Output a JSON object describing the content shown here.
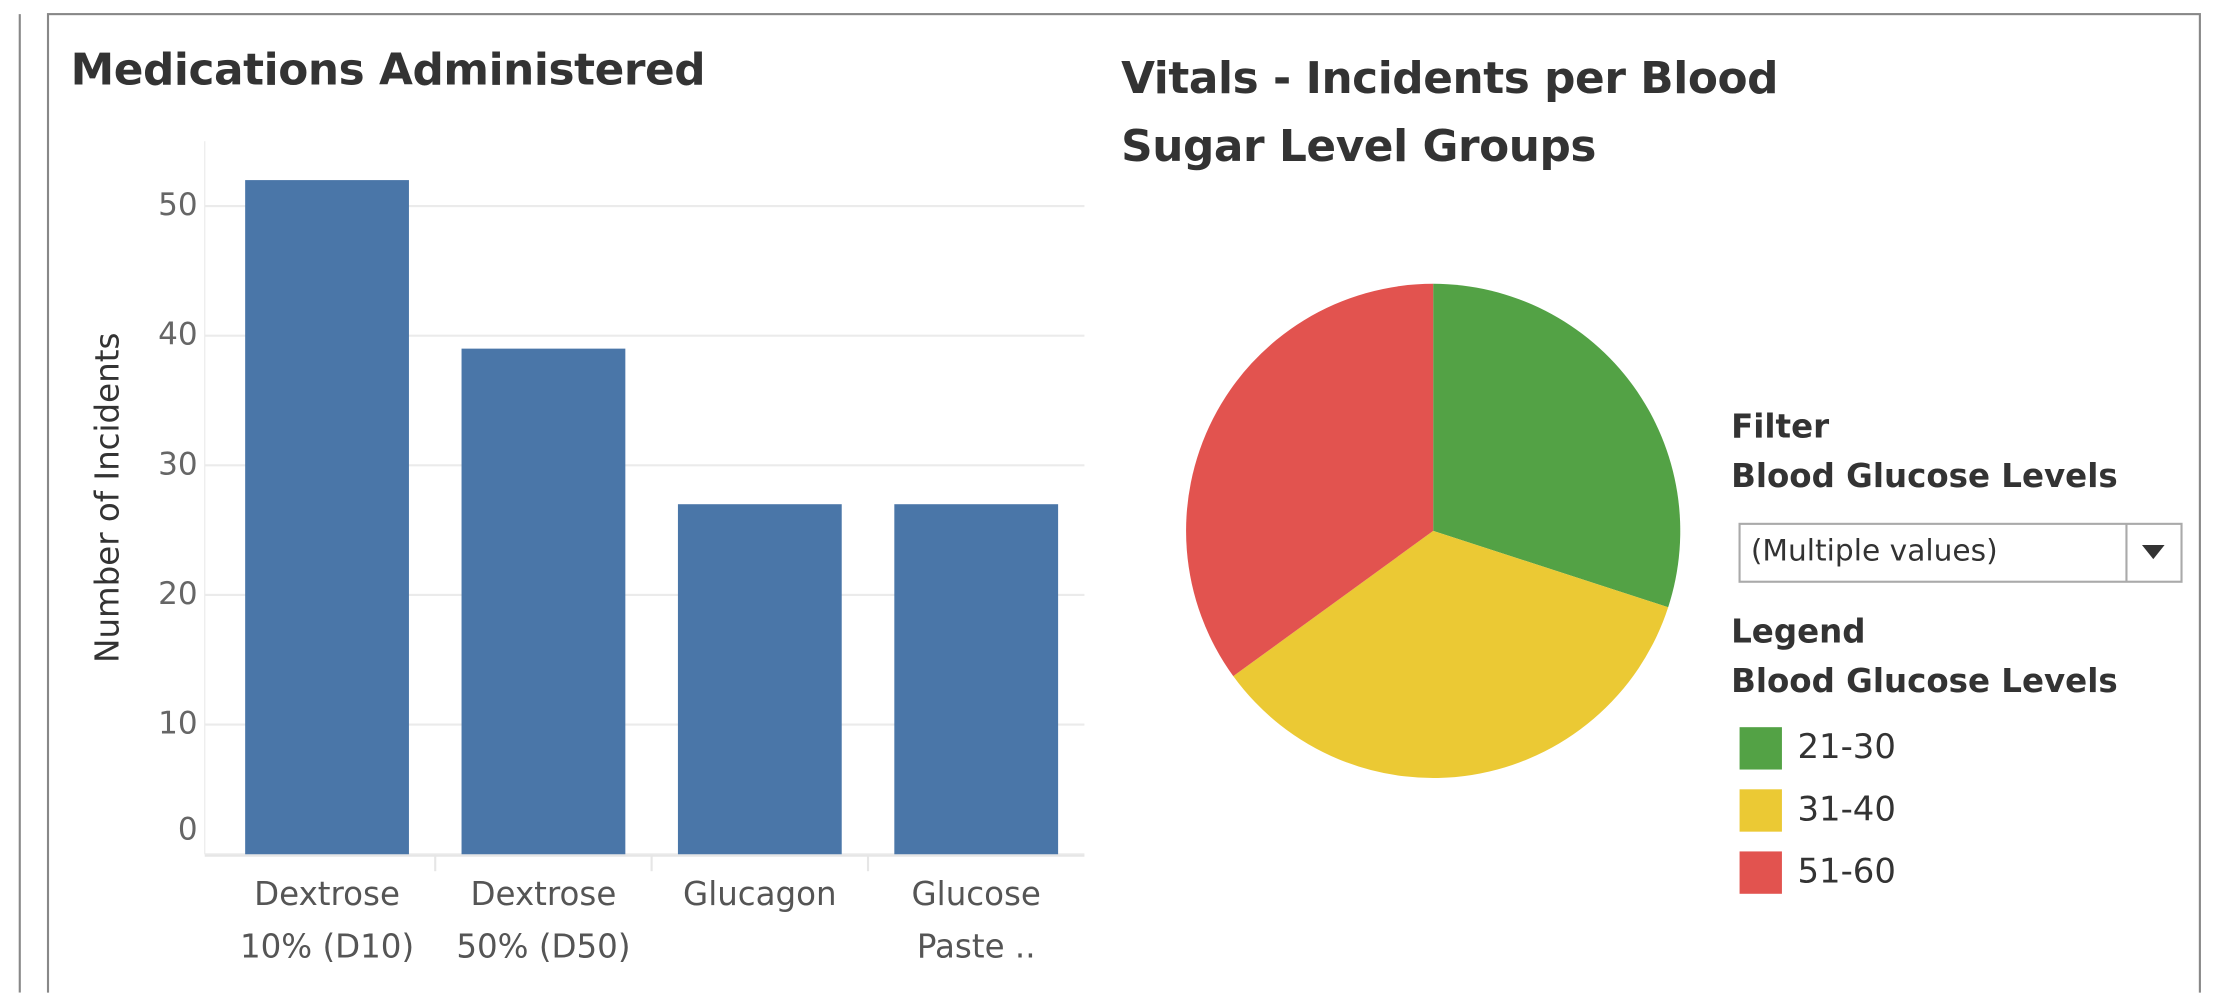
{
  "chart_data": [
    {
      "type": "bar",
      "title": "Medications Administered",
      "y_label": "Number of Incidents",
      "categories": [
        "Dextrose 10% (D10)",
        "Dextrose 50% (D50)",
        "Glucagon",
        "Glucose Paste .."
      ],
      "values": [
        52,
        39,
        27,
        27
      ],
      "color": "#4a76a8",
      "ylim": [
        0,
        55
      ],
      "yticks": [
        0,
        10,
        20,
        30,
        40,
        50
      ],
      "grid": true
    },
    {
      "type": "pie",
      "title": "Vitals - Incidents per Blood Sugar Level Groups",
      "categories": [
        "21-30",
        "31-40",
        "51-60"
      ],
      "values": [
        30,
        35,
        35
      ],
      "colors": [
        "#53a245",
        "#ebc934",
        "#e2534f"
      ],
      "legend_title": "Legend",
      "legend_subtitle": "Blood Glucose Levels"
    }
  ],
  "filter": {
    "title": "Filter",
    "field": "Blood Glucose Levels",
    "value": "(Multiple values)"
  }
}
